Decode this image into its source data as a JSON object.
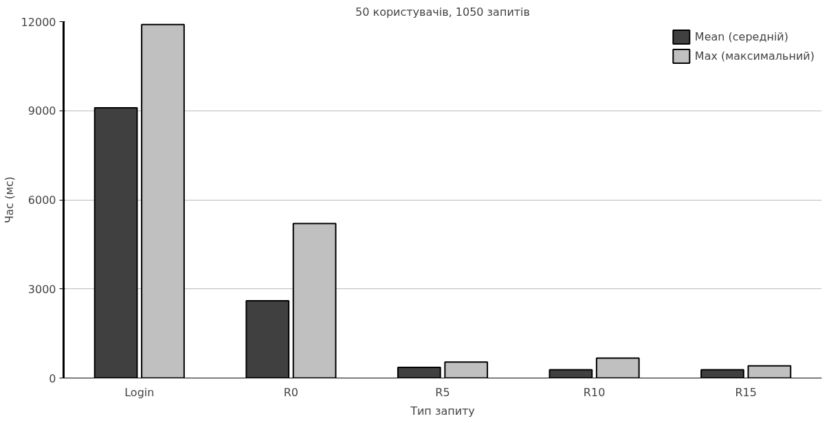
{
  "chart_data": {
    "type": "bar",
    "title": "50 користувачів, 1050 запитів",
    "xlabel": "Тип запиту",
    "ylabel": "Час (мс)",
    "categories": [
      "Login",
      "R0",
      "R5",
      "R10",
      "R15"
    ],
    "series": [
      {
        "name": "Mean (середній)",
        "color": "#404040",
        "values": [
          9100,
          2600,
          360,
          280,
          280
        ]
      },
      {
        "name": "Max (максимальний)",
        "color": "#c0c0c0",
        "values": [
          11900,
          5200,
          540,
          670,
          410
        ]
      }
    ],
    "ylim": [
      0,
      12000
    ],
    "yticks": [
      0,
      3000,
      6000,
      9000,
      12000
    ],
    "grid": "y",
    "legend": "top right"
  }
}
